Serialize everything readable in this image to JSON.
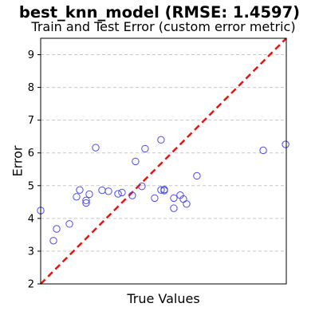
{
  "chart_data": {
    "type": "scatter",
    "title": "best_knn_model (RMSE: 1.4597)",
    "subtitle": "Train and Test Error (custom error metric)",
    "xlabel": "True Values",
    "ylabel": "Error",
    "xlim": [
      0,
      1
    ],
    "ylim": [
      2,
      9.5
    ],
    "yticks": [
      2,
      3,
      4,
      5,
      6,
      7,
      8,
      9
    ],
    "x_tick_labels_visible": false,
    "grid": "horizontal-dashed",
    "reference_line": {
      "style": "red-dashed",
      "from": [
        0,
        2
      ],
      "to": [
        1,
        9.5
      ]
    },
    "marker": "hollow-circle",
    "colors": {
      "points": "#4a4af0",
      "line": "#ee1111",
      "grid": "#c8c8c8"
    },
    "points": [
      {
        "x": 0.0,
        "y": 4.24
      },
      {
        "x": 0.052,
        "y": 3.32
      },
      {
        "x": 0.065,
        "y": 3.68
      },
      {
        "x": 0.117,
        "y": 3.83
      },
      {
        "x": 0.146,
        "y": 4.66
      },
      {
        "x": 0.159,
        "y": 4.87
      },
      {
        "x": 0.185,
        "y": 4.55
      },
      {
        "x": 0.185,
        "y": 4.47
      },
      {
        "x": 0.198,
        "y": 4.74
      },
      {
        "x": 0.224,
        "y": 6.16
      },
      {
        "x": 0.25,
        "y": 4.86
      },
      {
        "x": 0.276,
        "y": 4.83
      },
      {
        "x": 0.315,
        "y": 4.75
      },
      {
        "x": 0.331,
        "y": 4.79
      },
      {
        "x": 0.373,
        "y": 4.7
      },
      {
        "x": 0.386,
        "y": 5.74
      },
      {
        "x": 0.412,
        "y": 4.98
      },
      {
        "x": 0.425,
        "y": 6.13
      },
      {
        "x": 0.464,
        "y": 4.62
      },
      {
        "x": 0.49,
        "y": 6.4
      },
      {
        "x": 0.49,
        "y": 4.87
      },
      {
        "x": 0.503,
        "y": 4.85
      },
      {
        "x": 0.503,
        "y": 4.88
      },
      {
        "x": 0.542,
        "y": 4.31
      },
      {
        "x": 0.542,
        "y": 4.62
      },
      {
        "x": 0.568,
        "y": 4.71
      },
      {
        "x": 0.581,
        "y": 4.59
      },
      {
        "x": 0.594,
        "y": 4.44
      },
      {
        "x": 0.636,
        "y": 5.3
      },
      {
        "x": 0.906,
        "y": 6.08
      },
      {
        "x": 0.997,
        "y": 6.26
      }
    ]
  }
}
